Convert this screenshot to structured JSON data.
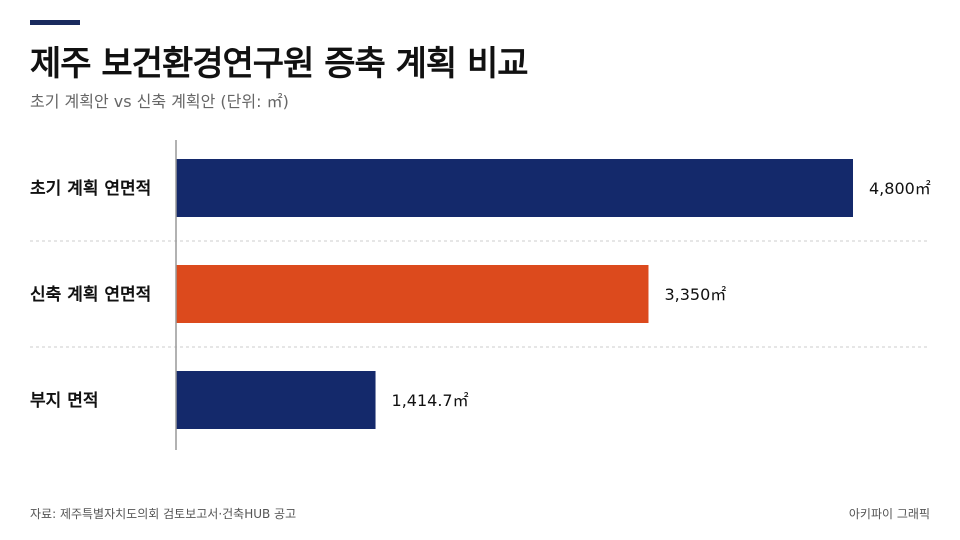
{
  "header": {
    "title": "제주 보건환경연구원 증축 계획 비교",
    "subtitle": "초기 계획안 vs 신축 계획안 (단위: ㎡)"
  },
  "footer": {
    "source": "자료: 제주특별자치도의회 검토보고서·건축HUB 공고",
    "credit": "아키파이 그래픽"
  },
  "colors": {
    "navy": "#14296b",
    "orange": "#dc4a1d",
    "accent": "#1a2b5e"
  },
  "chart_data": {
    "type": "bar",
    "orientation": "horizontal",
    "categories": [
      "초기 계획 연면적",
      "신축 계획 연면적",
      "부지 면적"
    ],
    "values": [
      4800,
      3350,
      1414.7
    ],
    "value_labels": [
      "4,800㎡",
      "3,350㎡",
      "1,414.7㎡"
    ],
    "bar_colors": [
      "#14296b",
      "#dc4a1d",
      "#14296b"
    ],
    "xlim": [
      0,
      5000
    ],
    "unit": "㎡",
    "grid": false
  }
}
